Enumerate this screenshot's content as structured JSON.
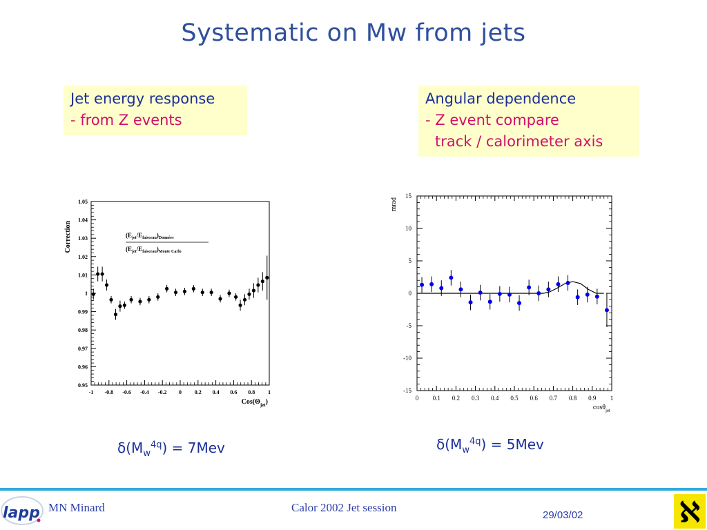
{
  "slide": {
    "title": "Systematic on Mw from jets"
  },
  "left_box": {
    "line1": "Jet energy response",
    "line2": "- from Z events"
  },
  "right_box": {
    "line1": "Angular dependence",
    "line2": "- Z event compare",
    "line3": "track / calorimeter axis"
  },
  "left_result": {
    "delta": "δ",
    "open": "(M",
    "sub": "w",
    "sup": "4q",
    "close": ") =  7Mev"
  },
  "right_result": {
    "delta": "δ",
    "open": "(M",
    "sub": "w",
    "sup": "4q",
    "close": ") =  5Mev"
  },
  "footer": {
    "author": "MN Minard",
    "session": "Calor 2002 Jet session",
    "date": "29/03/02",
    "logo_left_text": "lapp",
    "logo_right_text": "ℵ"
  },
  "colors": {
    "title": "#2e4f9c",
    "box_bg": "#ffffcc",
    "box_text": "#1a2f9a",
    "box_highlight": "#d0106a",
    "left_markers": "#000000",
    "right_markers": "#0000ee",
    "footer_line": "#33aadd"
  },
  "chart_data": [
    {
      "type": "scatter",
      "title": "",
      "ylabel": "Correction",
      "xlabel_main": "Cos(Θ",
      "xlabel_sub": "jet",
      "xlabel_close": ")",
      "xlim": [
        -1,
        1
      ],
      "ylim": [
        0.95,
        1.05
      ],
      "xticks": [
        -1,
        -0.8,
        -0.6,
        -0.4,
        -0.2,
        0,
        0.2,
        0.4,
        0.6,
        0.8,
        1
      ],
      "xtick_labels": [
        "-1",
        "-0.8",
        "-0.6",
        "-0.4",
        "-0.2",
        "0",
        "0.2",
        "0.4",
        "0.6",
        "0.8",
        "1"
      ],
      "yticks": [
        0.95,
        0.96,
        0.97,
        0.98,
        0.99,
        1.0,
        1.01,
        1.02,
        1.03,
        1.04,
        1.05
      ],
      "ytick_labels": [
        "0.95",
        "0.96",
        "0.97",
        "0.98",
        "0.99",
        "1",
        "1.01",
        "1.02",
        "1.03",
        "1.04",
        "1.05"
      ],
      "annotation": {
        "num_a": "(E",
        "num_b": "jet",
        "num_c": "/E",
        "num_d": "faisceau",
        "num_e": ")",
        "num_f": "Données",
        "den_a": "(E",
        "den_b": "jet",
        "den_c": "/E",
        "den_d": "faisceau",
        "den_e": ")",
        "den_f": "Monte Carlo"
      },
      "points": [
        {
          "x": -0.975,
          "y": 0.9995,
          "err": 0.003
        },
        {
          "x": -0.925,
          "y": 1.0105,
          "err": 0.004
        },
        {
          "x": -0.875,
          "y": 1.0105,
          "err": 0.004
        },
        {
          "x": -0.825,
          "y": 1.0045,
          "err": 0.003
        },
        {
          "x": -0.775,
          "y": 0.9965,
          "err": 0.002
        },
        {
          "x": -0.725,
          "y": 0.9885,
          "err": 0.003
        },
        {
          "x": -0.675,
          "y": 0.993,
          "err": 0.003
        },
        {
          "x": -0.625,
          "y": 0.9935,
          "err": 0.002
        },
        {
          "x": -0.55,
          "y": 0.9965,
          "err": 0.002
        },
        {
          "x": -0.45,
          "y": 0.9955,
          "err": 0.002
        },
        {
          "x": -0.35,
          "y": 0.9965,
          "err": 0.002
        },
        {
          "x": -0.25,
          "y": 0.998,
          "err": 0.002
        },
        {
          "x": -0.15,
          "y": 1.0025,
          "err": 0.002
        },
        {
          "x": -0.05,
          "y": 1.0005,
          "err": 0.002
        },
        {
          "x": 0.05,
          "y": 1.001,
          "err": 0.002
        },
        {
          "x": 0.15,
          "y": 1.0025,
          "err": 0.002
        },
        {
          "x": 0.25,
          "y": 1.0005,
          "err": 0.002
        },
        {
          "x": 0.35,
          "y": 1.0005,
          "err": 0.002
        },
        {
          "x": 0.45,
          "y": 0.997,
          "err": 0.002
        },
        {
          "x": 0.55,
          "y": 1.0,
          "err": 0.002
        },
        {
          "x": 0.625,
          "y": 0.998,
          "err": 0.002
        },
        {
          "x": 0.675,
          "y": 0.9935,
          "err": 0.003
        },
        {
          "x": 0.725,
          "y": 0.9965,
          "err": 0.003
        },
        {
          "x": 0.775,
          "y": 0.9995,
          "err": 0.003
        },
        {
          "x": 0.825,
          "y": 1.0015,
          "err": 0.004
        },
        {
          "x": 0.875,
          "y": 1.0045,
          "err": 0.004
        },
        {
          "x": 0.925,
          "y": 1.0065,
          "err": 0.005
        },
        {
          "x": 0.975,
          "y": 1.0085,
          "err": 0.012
        }
      ]
    },
    {
      "type": "scatter",
      "title": "",
      "ylabel": "mrad",
      "xlabel_main": "cosθ",
      "xlabel_sub": "jet",
      "xlim": [
        0,
        1
      ],
      "ylim": [
        -15,
        15
      ],
      "xticks": [
        0,
        0.1,
        0.2,
        0.3,
        0.4,
        0.5,
        0.6,
        0.7,
        0.8,
        0.9,
        1
      ],
      "xtick_labels": [
        "0",
        "0.1",
        "0.2",
        "0.3",
        "0.4",
        "0.5",
        "0.6",
        "0.7",
        "0.8",
        "0.9",
        "1"
      ],
      "yticks": [
        -15,
        -10,
        -5,
        0,
        5,
        10,
        15
      ],
      "ytick_labels": [
        "-15",
        "-10",
        "-5",
        "0",
        "5",
        "10",
        "15"
      ],
      "points": [
        {
          "x": 0.025,
          "y": 1.3,
          "err": 1.2
        },
        {
          "x": 0.075,
          "y": 1.4,
          "err": 1.2
        },
        {
          "x": 0.125,
          "y": 0.8,
          "err": 1.2
        },
        {
          "x": 0.175,
          "y": 2.4,
          "err": 1.2
        },
        {
          "x": 0.225,
          "y": 0.6,
          "err": 1.2
        },
        {
          "x": 0.275,
          "y": -1.4,
          "err": 1.2
        },
        {
          "x": 0.325,
          "y": 0.1,
          "err": 1.2
        },
        {
          "x": 0.375,
          "y": -1.3,
          "err": 1.2
        },
        {
          "x": 0.425,
          "y": -0.1,
          "err": 1.2
        },
        {
          "x": 0.475,
          "y": -0.2,
          "err": 1.2
        },
        {
          "x": 0.525,
          "y": -1.5,
          "err": 1.2
        },
        {
          "x": 0.575,
          "y": 0.9,
          "err": 1.2
        },
        {
          "x": 0.625,
          "y": 0.0,
          "err": 1.2
        },
        {
          "x": 0.675,
          "y": 0.6,
          "err": 1.2
        },
        {
          "x": 0.725,
          "y": 1.4,
          "err": 1.2
        },
        {
          "x": 0.775,
          "y": 1.6,
          "err": 1.2
        },
        {
          "x": 0.825,
          "y": -0.6,
          "err": 1.2
        },
        {
          "x": 0.875,
          "y": -0.2,
          "err": 1.2
        },
        {
          "x": 0.925,
          "y": -0.5,
          "err": 1.2
        },
        {
          "x": 0.975,
          "y": -2.6,
          "err": 2.6
        }
      ],
      "fit_curve": [
        [
          0.0,
          0.0
        ],
        [
          0.65,
          0.0
        ],
        [
          0.68,
          0.2
        ],
        [
          0.72,
          0.8
        ],
        [
          0.76,
          1.5
        ],
        [
          0.8,
          1.8
        ],
        [
          0.84,
          1.5
        ],
        [
          0.88,
          0.6
        ],
        [
          0.92,
          0.0
        ],
        [
          0.96,
          0.0
        ]
      ]
    }
  ]
}
